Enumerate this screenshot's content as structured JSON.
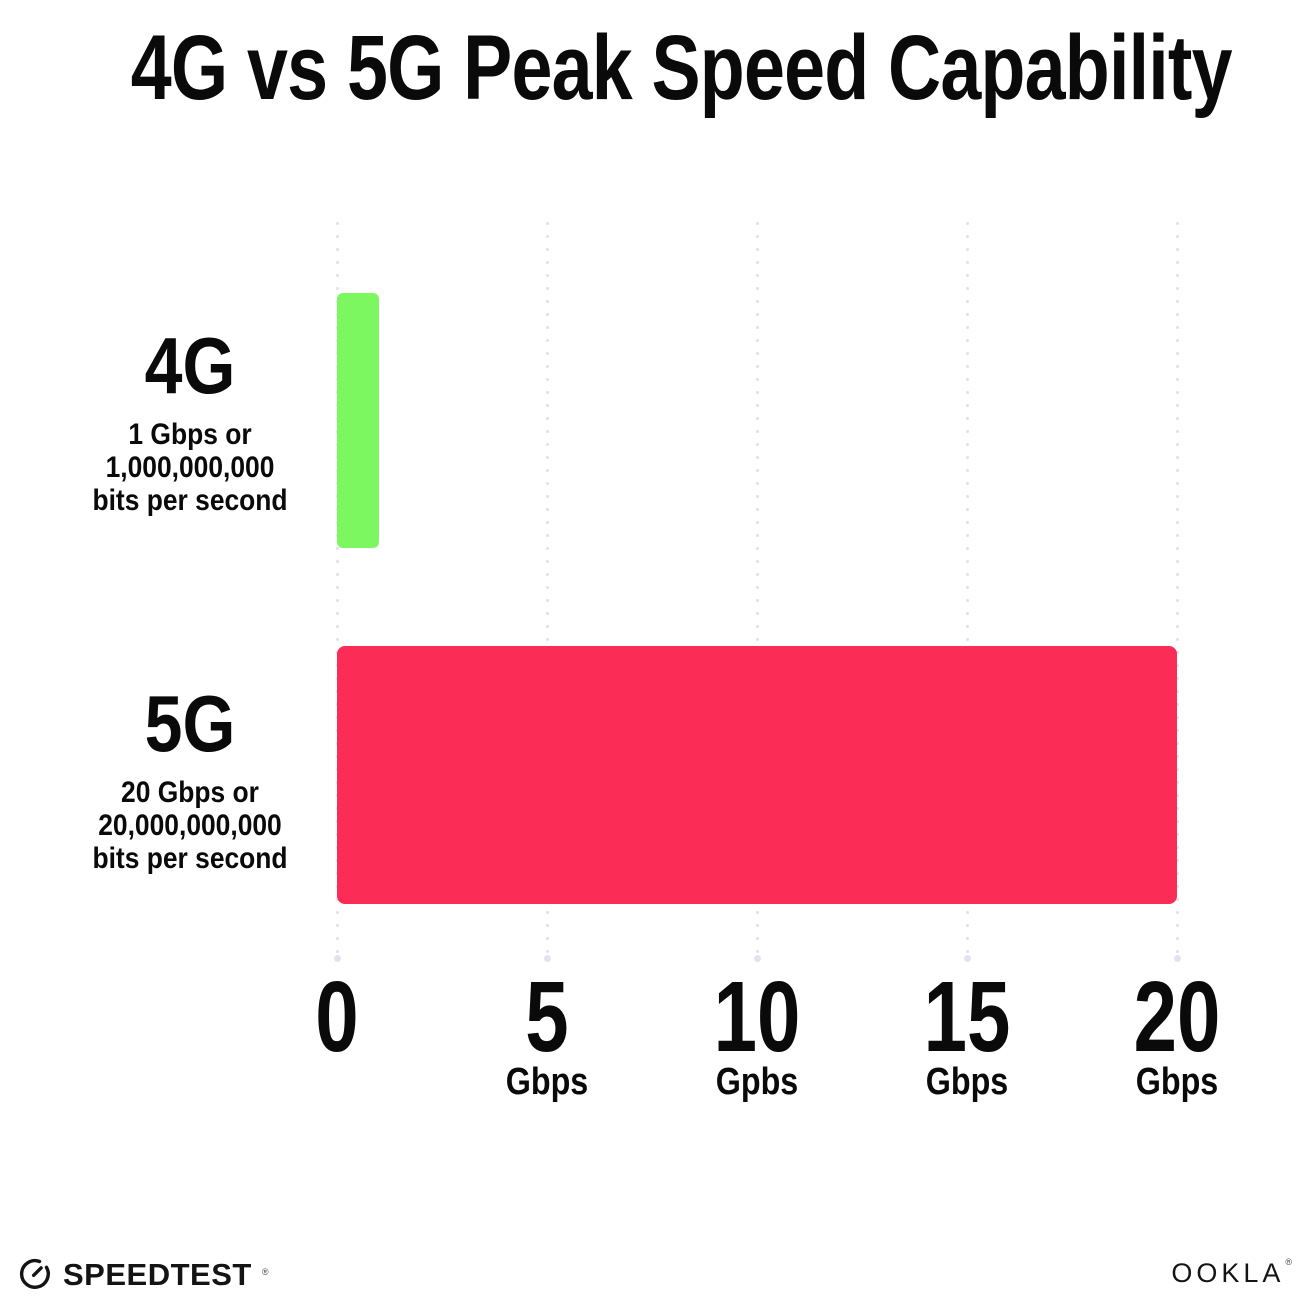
{
  "title": "4G vs 5G Peak Speed Capability",
  "chart_data": {
    "type": "bar",
    "orientation": "horizontal",
    "title": "4G vs 5G Peak Speed Capability",
    "categories": [
      "4G",
      "5G"
    ],
    "values": [
      1,
      20
    ],
    "value_unit": "Gbps",
    "xlim": [
      0,
      20
    ],
    "grid": "dotted-vertical-gridlines",
    "legend": "none",
    "rows": [
      {
        "label": "4G",
        "sublabel": "1 Gbps or\n1,000,000,000\nbits per second",
        "value_gbps": 1,
        "color": "#7DF75F"
      },
      {
        "label": "5G",
        "sublabel": "20 Gbps or\n20,000,000,000\nbits per second",
        "value_gbps": 20,
        "color": "#FB2C55"
      }
    ],
    "ticks": [
      {
        "value": 0,
        "label": "0",
        "unit": ""
      },
      {
        "value": 5,
        "label": "5",
        "unit": "Gbps"
      },
      {
        "value": 10,
        "label": "10",
        "unit": "Gpbs"
      },
      {
        "value": 15,
        "label": "15",
        "unit": "Gbps"
      },
      {
        "value": 20,
        "label": "20",
        "unit": "Gbps"
      }
    ],
    "gridline_color": "#E1E1EC",
    "text_color": "#0A0A0A"
  },
  "footer": {
    "speedtest": "SPEEDTEST",
    "speedtest_mark": "®",
    "ookla": "OOKLA",
    "ookla_mark": "®"
  }
}
